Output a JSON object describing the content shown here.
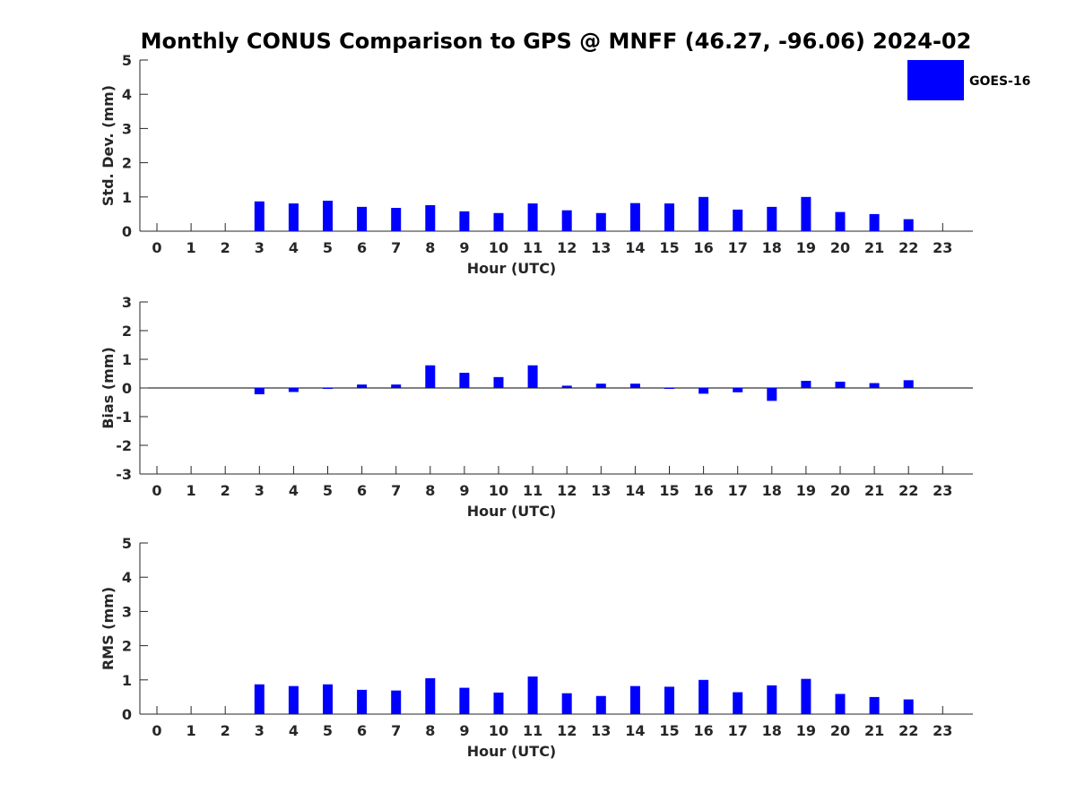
{
  "chart_data": {
    "title": "Monthly CONUS Comparison to GPS @ MNFF (46.27, -96.06) 2024-02",
    "type": "bar",
    "bar_color": "#0000ff",
    "legend": {
      "entries": [
        "GOES-16"
      ],
      "placement": "top-right"
    },
    "categories": [
      "0",
      "1",
      "2",
      "3",
      "4",
      "5",
      "6",
      "7",
      "8",
      "9",
      "10",
      "11",
      "12",
      "13",
      "14",
      "15",
      "16",
      "17",
      "18",
      "19",
      "20",
      "21",
      "22",
      "23"
    ],
    "panels": [
      {
        "ylabel": "Std. Dev. (mm)",
        "xlabel": "Hour (UTC)",
        "ylim": [
          0,
          5
        ],
        "yticks": [
          "0",
          "1",
          "2",
          "3",
          "4",
          "5"
        ],
        "series": [
          {
            "name": "GOES-16",
            "values": [
              null,
              null,
              null,
              0.87,
              0.81,
              0.89,
              0.71,
              0.68,
              0.76,
              0.58,
              0.53,
              0.81,
              0.61,
              0.53,
              0.82,
              0.81,
              1.0,
              0.63,
              0.71,
              1.0,
              0.56,
              0.5,
              0.35,
              null
            ]
          }
        ]
      },
      {
        "ylabel": "Bias (mm)",
        "xlabel": "Hour (UTC)",
        "ylim": [
          -3,
          3
        ],
        "yticks": [
          "-3",
          "-2",
          "-1",
          "0",
          "1",
          "2",
          "3"
        ],
        "zero_line": true,
        "series": [
          {
            "name": "GOES-16",
            "values": [
              null,
              null,
              null,
              -0.22,
              -0.14,
              0.0,
              0.12,
              0.12,
              0.79,
              0.53,
              0.38,
              0.79,
              0.08,
              0.15,
              0.15,
              0.0,
              -0.2,
              -0.15,
              -0.45,
              0.25,
              0.22,
              0.17,
              0.27,
              null
            ]
          }
        ]
      },
      {
        "ylabel": "RMS (mm)",
        "xlabel": "Hour (UTC)",
        "ylim": [
          0,
          5
        ],
        "yticks": [
          "0",
          "1",
          "2",
          "3",
          "4",
          "5"
        ],
        "series": [
          {
            "name": "GOES-16",
            "values": [
              null,
              null,
              null,
              0.87,
              0.82,
              0.87,
              0.71,
              0.69,
              1.05,
              0.77,
              0.63,
              1.1,
              0.61,
              0.53,
              0.82,
              0.8,
              1.0,
              0.64,
              0.84,
              1.03,
              0.59,
              0.5,
              0.43,
              null
            ]
          }
        ]
      }
    ]
  }
}
